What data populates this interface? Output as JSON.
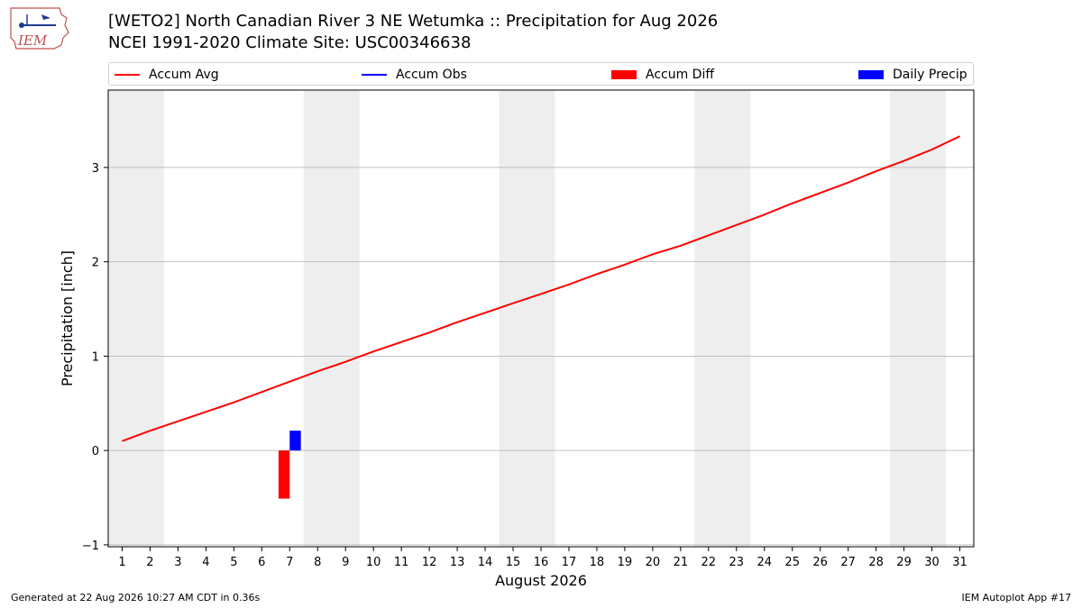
{
  "header": {
    "title_line1": "[WETO2] North Canadian River 3 NE Wetumka :: Precipitation for Aug 2026",
    "title_line2": "NCEI 1991-2020 Climate Site: USC00346638",
    "logo_text": "IEM"
  },
  "legend": {
    "accum_avg": "Accum Avg",
    "accum_obs": "Accum Obs",
    "accum_diff": "Accum Diff",
    "daily_precip": "Daily Precip"
  },
  "colors": {
    "accum_avg": "#ff0000",
    "accum_obs": "#0000ff",
    "accum_diff": "#ff0000",
    "daily_precip": "#0000ff",
    "weekend_shade": "#eeeeee",
    "grid": "#b0b0b0"
  },
  "chart_data": {
    "type": "line",
    "xlabel": "August 2026",
    "ylabel": "Precipitation [inch]",
    "x_ticks": [
      1,
      2,
      3,
      4,
      5,
      6,
      7,
      8,
      9,
      10,
      11,
      12,
      13,
      14,
      15,
      16,
      17,
      18,
      19,
      20,
      21,
      22,
      23,
      24,
      25,
      26,
      27,
      28,
      29,
      30,
      31
    ],
    "ylim": [
      -1.02,
      3.82
    ],
    "y_ticks": [
      -1,
      0,
      1,
      2,
      3
    ],
    "y_tick_labels": [
      "−1",
      "0",
      "1",
      "2",
      "3"
    ],
    "grid": "horizontal",
    "legend_position": "top",
    "weekend_spans": [
      [
        1,
        2
      ],
      [
        8,
        9
      ],
      [
        15,
        16
      ],
      [
        22,
        23
      ],
      [
        29,
        30
      ]
    ],
    "series": [
      {
        "name": "Accum Avg",
        "kind": "line",
        "days": [
          1,
          2,
          3,
          4,
          5,
          6,
          7,
          8,
          9,
          10,
          11,
          12,
          13,
          14,
          15,
          16,
          17,
          18,
          19,
          20,
          21,
          22,
          23,
          24,
          25,
          26,
          27,
          28,
          29,
          30,
          31
        ],
        "values": [
          0.1,
          0.21,
          0.31,
          0.41,
          0.51,
          0.62,
          0.73,
          0.84,
          0.94,
          1.05,
          1.15,
          1.25,
          1.36,
          1.46,
          1.56,
          1.66,
          1.76,
          1.87,
          1.97,
          2.08,
          2.17,
          2.28,
          2.39,
          2.5,
          2.62,
          2.73,
          2.84,
          2.96,
          3.07,
          3.19,
          3.33
        ]
      },
      {
        "name": "Accum Diff",
        "kind": "bar",
        "days": [
          7
        ],
        "values": [
          -0.51
        ]
      },
      {
        "name": "Daily Precip",
        "kind": "bar",
        "days": [
          7
        ],
        "values": [
          0.21
        ]
      }
    ]
  },
  "footer": {
    "generated": "Generated at 22 Aug 2026 10:27 AM CDT in 0.36s",
    "app": "IEM Autoplot App #17"
  }
}
